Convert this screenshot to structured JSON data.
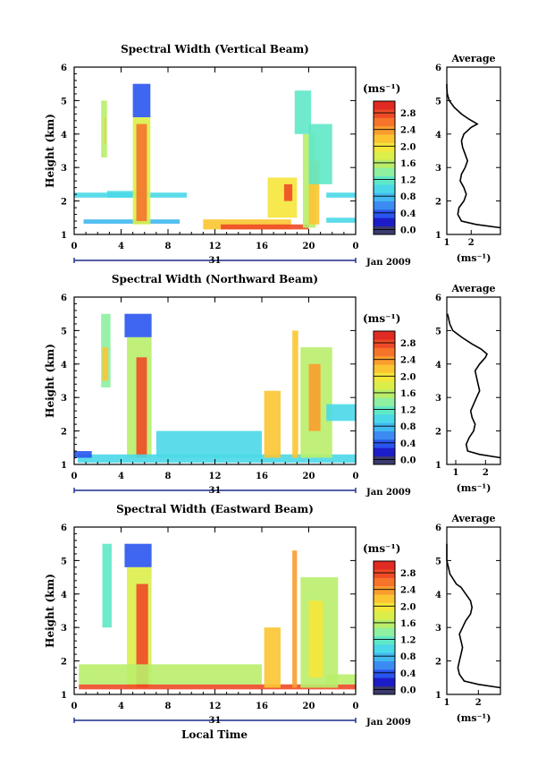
{
  "figure": {
    "xlabel": "Local Time",
    "date_label": "Jan 2009",
    "day_label": "31"
  },
  "colorbar": {
    "unit": "(ms⁻¹)",
    "ticks": [
      "0.0",
      "0.4",
      "0.8",
      "1.2",
      "1.6",
      "2.0",
      "2.4",
      "2.8"
    ],
    "colors": [
      "#3a3a6e",
      "#1c1cc8",
      "#2a55ee",
      "#3b8bf2",
      "#41b9f0",
      "#4ad8e8",
      "#5fe8c8",
      "#8ef0a0",
      "#b9ee6a",
      "#dcee4a",
      "#f5e63a",
      "#fbc532",
      "#f99d2e",
      "#f5742a",
      "#ee4a26",
      "#e02a22"
    ]
  },
  "chart_data": [
    {
      "type": "heatmap",
      "title": "Spectral Width (Vertical Beam)",
      "ylabel": "Height (km)",
      "xlim": [
        0,
        24
      ],
      "ylim": [
        1,
        6
      ],
      "xticks": [
        "0",
        "4",
        "8",
        "12",
        "16",
        "20",
        "0"
      ],
      "yticks": [
        "1",
        "2",
        "3",
        "4",
        "5",
        "6"
      ],
      "colorbar_ticks": [
        "0.0",
        "0.4",
        "0.8",
        "1.2",
        "1.6",
        "2.0",
        "2.4",
        "2.8"
      ],
      "blobs": [
        {
          "x0": 2.3,
          "x1": 2.8,
          "y0": 3.3,
          "y1": 5.0,
          "v": 1.6
        },
        {
          "x0": 2.6,
          "x1": 2.7,
          "y0": 3.7,
          "y1": 4.5,
          "v": 2.2
        },
        {
          "x0": 2.8,
          "x1": 6.4,
          "y0": 2.1,
          "y1": 2.3,
          "v": 1.0
        },
        {
          "x0": 0,
          "x1": 9.6,
          "y0": 2.1,
          "y1": 2.25,
          "v": 1.1
        },
        {
          "x0": 0.8,
          "x1": 9.0,
          "y0": 1.32,
          "y1": 1.45,
          "v": 0.9
        },
        {
          "x0": 5.0,
          "x1": 6.5,
          "y0": 4.5,
          "y1": 5.5,
          "v": 0.6
        },
        {
          "x0": 5.0,
          "x1": 6.5,
          "y0": 1.3,
          "y1": 4.5,
          "v": 1.9
        },
        {
          "x0": 5.3,
          "x1": 6.2,
          "y0": 1.4,
          "y1": 4.3,
          "v": 2.8
        },
        {
          "x0": 11.0,
          "x1": 18.5,
          "y0": 1.15,
          "y1": 1.45,
          "v": 2.4
        },
        {
          "x0": 12.5,
          "x1": 20.0,
          "y0": 1.15,
          "y1": 1.3,
          "v": 2.9
        },
        {
          "x0": 16.5,
          "x1": 19.0,
          "y0": 1.5,
          "y1": 2.7,
          "v": 2.0
        },
        {
          "x0": 19.5,
          "x1": 20.6,
          "y0": 1.2,
          "y1": 4.0,
          "v": 1.6
        },
        {
          "x0": 20.0,
          "x1": 20.9,
          "y0": 1.3,
          "y1": 3.2,
          "v": 2.3
        },
        {
          "x0": 18.8,
          "x1": 20.2,
          "y0": 4.0,
          "y1": 5.3,
          "v": 1.3
        },
        {
          "x0": 20.0,
          "x1": 22.0,
          "y0": 2.5,
          "y1": 4.3,
          "v": 1.4
        },
        {
          "x0": 21.5,
          "x1": 24.0,
          "y0": 1.35,
          "y1": 1.5,
          "v": 1.0
        },
        {
          "x0": 21.5,
          "x1": 24.0,
          "y0": 2.1,
          "y1": 2.25,
          "v": 1.2
        },
        {
          "x0": 17.9,
          "x1": 18.6,
          "y0": 2.0,
          "y1": 2.5,
          "v": 2.9
        }
      ],
      "average": {
        "title": "Average",
        "xlabel": "(ms⁻¹)",
        "xlim": [
          1,
          3.2
        ],
        "xticks": [
          "1",
          "2"
        ],
        "yticks": [
          "1",
          "2",
          "3",
          "4",
          "5",
          "6"
        ],
        "x": [
          3.2,
          2.2,
          1.6,
          1.45,
          1.5,
          1.7,
          1.8,
          1.7,
          1.55,
          1.6,
          1.75,
          1.85,
          1.75,
          1.65,
          1.6,
          1.7,
          2.0,
          2.25,
          1.9,
          1.6,
          1.3,
          1.1,
          1.02,
          1.0,
          1.0
        ],
        "y": [
          1.2,
          1.3,
          1.4,
          1.6,
          1.8,
          2.0,
          2.2,
          2.4,
          2.6,
          2.8,
          3.0,
          3.2,
          3.4,
          3.6,
          3.8,
          4.0,
          4.2,
          4.3,
          4.45,
          4.6,
          4.8,
          5.0,
          5.2,
          5.4,
          5.5
        ]
      }
    },
    {
      "type": "heatmap",
      "title": "Spectral Width (Northward Beam)",
      "ylabel": "Height (km)",
      "xlim": [
        0,
        24
      ],
      "ylim": [
        1,
        6
      ],
      "xticks": [
        "0",
        "4",
        "8",
        "12",
        "16",
        "20",
        "0"
      ],
      "yticks": [
        "1",
        "2",
        "3",
        "4",
        "5",
        "6"
      ],
      "colorbar_ticks": [
        "0.0",
        "0.4",
        "0.8",
        "1.2",
        "1.6",
        "2.0",
        "2.4",
        "2.8"
      ],
      "blobs": [
        {
          "x0": 2.3,
          "x1": 3.1,
          "y0": 3.3,
          "y1": 5.5,
          "v": 1.5
        },
        {
          "x0": 2.4,
          "x1": 2.9,
          "y0": 3.5,
          "y1": 4.5,
          "v": 2.2
        },
        {
          "x0": 4.3,
          "x1": 6.6,
          "y0": 4.8,
          "y1": 5.5,
          "v": 0.5
        },
        {
          "x0": 4.5,
          "x1": 6.6,
          "y0": 1.2,
          "y1": 4.8,
          "v": 1.6
        },
        {
          "x0": 5.3,
          "x1": 6.2,
          "y0": 1.2,
          "y1": 4.2,
          "v": 2.9
        },
        {
          "x0": 0.3,
          "x1": 24,
          "y0": 1.05,
          "y1": 1.3,
          "v": 1.0
        },
        {
          "x0": 0,
          "x1": 1.5,
          "y0": 1.2,
          "y1": 1.4,
          "v": 0.5
        },
        {
          "x0": 7.0,
          "x1": 16.0,
          "y0": 1.2,
          "y1": 2.0,
          "v": 1.2
        },
        {
          "x0": 16.2,
          "x1": 17.6,
          "y0": 1.2,
          "y1": 3.2,
          "v": 2.3
        },
        {
          "x0": 18.6,
          "x1": 19.1,
          "y0": 1.2,
          "y1": 5.0,
          "v": 2.4
        },
        {
          "x0": 19.3,
          "x1": 22.0,
          "y0": 1.2,
          "y1": 4.5,
          "v": 1.7
        },
        {
          "x0": 20.0,
          "x1": 21.0,
          "y0": 2.0,
          "y1": 4.0,
          "v": 2.5
        },
        {
          "x0": 21.5,
          "x1": 24.0,
          "y0": 2.3,
          "y1": 2.8,
          "v": 1.2
        }
      ],
      "average": {
        "title": "Average",
        "xlabel": "(ms⁻¹)",
        "xlim": [
          0.7,
          2.5
        ],
        "xticks": [
          "1",
          "2"
        ],
        "yticks": [
          "1",
          "2",
          "3",
          "4",
          "5",
          "6"
        ],
        "x": [
          2.5,
          1.8,
          1.4,
          1.35,
          1.45,
          1.6,
          1.65,
          1.55,
          1.5,
          1.6,
          1.7,
          1.8,
          1.75,
          1.7,
          1.65,
          1.8,
          2.0,
          2.05,
          1.85,
          1.55,
          1.2,
          0.9,
          0.8,
          0.75,
          0.72
        ],
        "y": [
          1.2,
          1.3,
          1.4,
          1.6,
          1.8,
          2.0,
          2.2,
          2.4,
          2.6,
          2.8,
          3.0,
          3.2,
          3.4,
          3.6,
          3.8,
          4.0,
          4.2,
          4.3,
          4.45,
          4.6,
          4.8,
          5.0,
          5.2,
          5.4,
          5.5
        ]
      }
    },
    {
      "type": "heatmap",
      "title": "Spectral Width (Eastward Beam)",
      "ylabel": "Height (km)",
      "xlim": [
        0,
        24
      ],
      "ylim": [
        1,
        6
      ],
      "xticks": [
        "0",
        "4",
        "8",
        "12",
        "16",
        "20",
        "0"
      ],
      "yticks": [
        "1",
        "2",
        "3",
        "4",
        "5",
        "6"
      ],
      "colorbar_ticks": [
        "0.0",
        "0.4",
        "0.8",
        "1.2",
        "1.6",
        "2.0",
        "2.4",
        "2.8"
      ],
      "blobs": [
        {
          "x0": 2.4,
          "x1": 3.2,
          "y0": 3.0,
          "y1": 5.5,
          "v": 1.3
        },
        {
          "x0": 4.3,
          "x1": 6.6,
          "y0": 4.8,
          "y1": 5.5,
          "v": 0.6
        },
        {
          "x0": 4.5,
          "x1": 6.6,
          "y0": 1.2,
          "y1": 4.8,
          "v": 1.8
        },
        {
          "x0": 5.3,
          "x1": 6.3,
          "y0": 1.2,
          "y1": 4.3,
          "v": 2.9
        },
        {
          "x0": 0.4,
          "x1": 24,
          "y0": 1.15,
          "y1": 1.3,
          "v": 2.9
        },
        {
          "x0": 0.4,
          "x1": 16.0,
          "y0": 1.3,
          "y1": 1.9,
          "v": 1.6
        },
        {
          "x0": 16.2,
          "x1": 17.6,
          "y0": 1.2,
          "y1": 3.0,
          "v": 2.3
        },
        {
          "x0": 18.6,
          "x1": 19.0,
          "y0": 1.2,
          "y1": 5.3,
          "v": 2.5
        },
        {
          "x0": 19.3,
          "x1": 22.5,
          "y0": 1.2,
          "y1": 4.5,
          "v": 1.6
        },
        {
          "x0": 20.0,
          "x1": 21.2,
          "y0": 1.5,
          "y1": 3.8,
          "v": 2.1
        },
        {
          "x0": 21.5,
          "x1": 24.0,
          "y0": 1.3,
          "y1": 1.6,
          "v": 1.6
        }
      ],
      "average": {
        "title": "Average",
        "xlabel": "(ms⁻¹)",
        "xlim": [
          1,
          2.7
        ],
        "xticks": [
          "1",
          "2"
        ],
        "yticks": [
          "1",
          "2",
          "3",
          "4",
          "5",
          "6"
        ],
        "x": [
          2.7,
          2.0,
          1.55,
          1.4,
          1.35,
          1.4,
          1.45,
          1.5,
          1.45,
          1.4,
          1.5,
          1.6,
          1.75,
          1.8,
          1.75,
          1.6,
          1.45,
          1.3,
          1.2,
          1.1,
          1.05,
          1.0,
          1.0,
          1.0,
          1.0
        ],
        "y": [
          1.2,
          1.3,
          1.4,
          1.6,
          1.8,
          2.0,
          2.2,
          2.4,
          2.6,
          2.8,
          3.0,
          3.2,
          3.4,
          3.6,
          3.8,
          4.0,
          4.2,
          4.3,
          4.45,
          4.6,
          4.8,
          5.0,
          5.2,
          5.4,
          5.5
        ]
      }
    }
  ]
}
